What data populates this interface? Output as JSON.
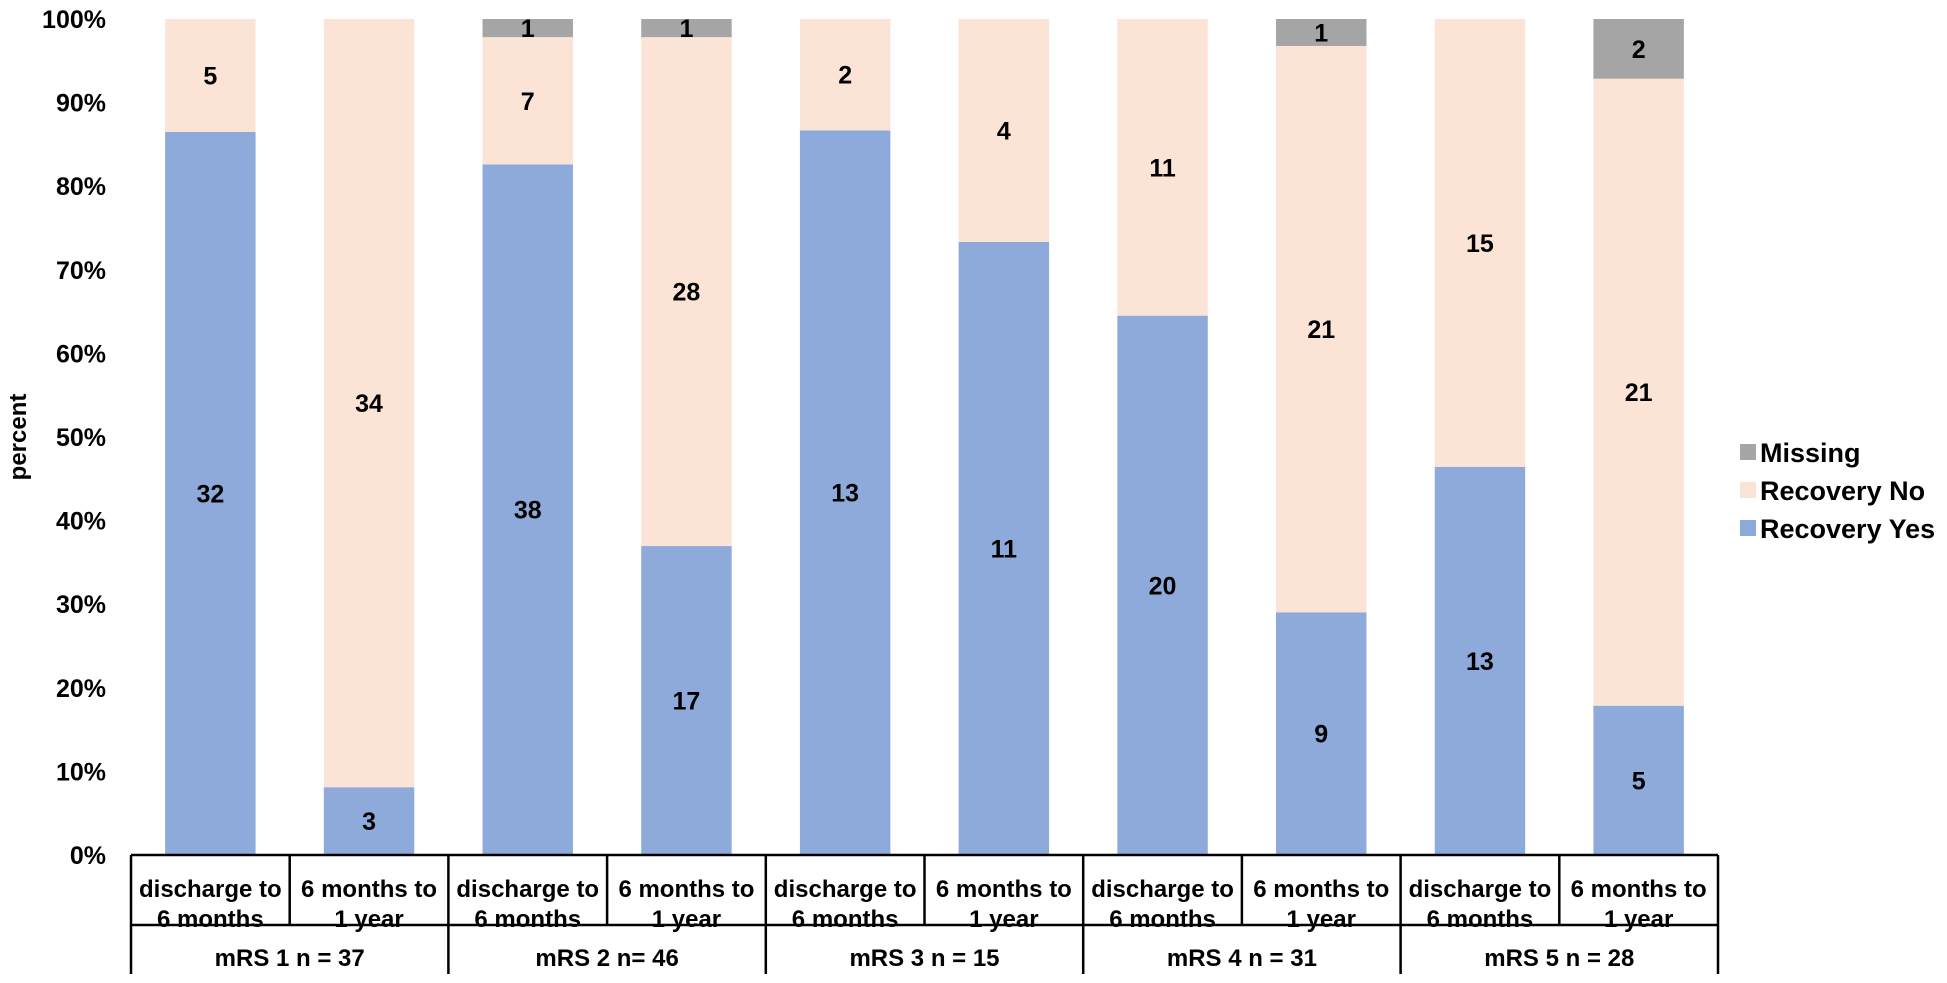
{
  "chart_data": {
    "type": "bar",
    "stacked": "percent",
    "ylabel": "percent",
    "ylim": [
      0,
      100
    ],
    "y_ticks": [
      "0%",
      "10%",
      "20%",
      "30%",
      "40%",
      "50%",
      "60%",
      "70%",
      "80%",
      "90%",
      "100%"
    ],
    "grid": false,
    "legend_position": "right",
    "categories": [
      "discharge to 6 months",
      "6 months to 1 year",
      "discharge to 6 months",
      "6 months to 1 year",
      "discharge to 6 months",
      "6 months to 1 year",
      "discharge to 6 months",
      "6 months to 1 year",
      "discharge to 6 months",
      "6 months to 1 year"
    ],
    "category_lines": [
      [
        "discharge to",
        "6 months"
      ],
      [
        "6 months to",
        "1 year"
      ],
      [
        "discharge to",
        "6 months"
      ],
      [
        "6 months to",
        "1 year"
      ],
      [
        "discharge to",
        "6 months"
      ],
      [
        "6 months to",
        "1 year"
      ],
      [
        "discharge to",
        "6 months"
      ],
      [
        "6 months to",
        "1 year"
      ],
      [
        "discharge to",
        "6 months"
      ],
      [
        "6 months to",
        "1 year"
      ]
    ],
    "groups": [
      "mRS 1 n = 37",
      "mRS 2 n= 46",
      "mRS 3 n = 15",
      "mRS 4 n = 31",
      "mRS 5 n = 28"
    ],
    "series": [
      {
        "name": "Recovery Yes",
        "color": "#8eaadb",
        "values": [
          32,
          3,
          38,
          17,
          13,
          11,
          20,
          9,
          13,
          5
        ]
      },
      {
        "name": "Recovery No",
        "color": "#fbe4d5",
        "values": [
          5,
          34,
          7,
          28,
          2,
          4,
          11,
          21,
          15,
          21
        ]
      },
      {
        "name": "Missing",
        "color": "#a5a5a5",
        "values": [
          0,
          0,
          1,
          1,
          0,
          0,
          0,
          1,
          0,
          2
        ]
      }
    ],
    "legend_order": [
      "Missing",
      "Recovery No",
      "Recovery Yes"
    ]
  }
}
